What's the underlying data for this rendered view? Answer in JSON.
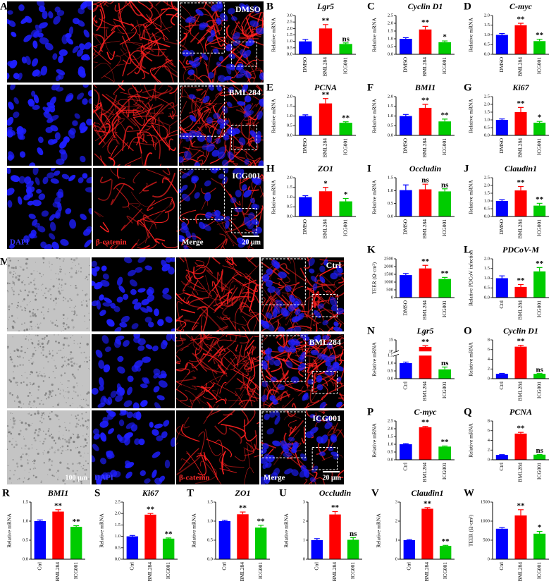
{
  "figure": {
    "A": {
      "label": "A",
      "conditions": [
        "DMSO",
        "BML284",
        "ICG001"
      ],
      "channels": [
        "DAPI",
        "β-catenin",
        "Merge"
      ],
      "scale_bar": "20 μm"
    },
    "M": {
      "label": "M",
      "conditions": [
        "Ctrl",
        "BML284",
        "ICG001"
      ],
      "channels": [
        "DAPI",
        "β-catenin",
        "Merge"
      ],
      "brightfield_scale_bar": "100 μm",
      "scale_bar": "20 μm"
    }
  },
  "chart_data": [
    {
      "type": "bar",
      "panel": "B",
      "title": "Lgr5",
      "ylabel": "Relative mRNA",
      "categories": [
        "DMSO",
        "BML284",
        "ICG001"
      ],
      "values": [
        1.0,
        2.0,
        0.8
      ],
      "errors": [
        0.15,
        0.3,
        0.08
      ],
      "annotations": [
        null,
        "**",
        "ns"
      ],
      "colors": [
        "#0000ff",
        "#ff0000",
        "#00cc00"
      ],
      "ylim": [
        0,
        3
      ],
      "yticks": [
        {
          "value": 0,
          "label": "0.0"
        },
        0.5,
        {
          "value": 1,
          "label": "1.0"
        },
        1.5,
        {
          "value": 2,
          "label": "2.0"
        },
        2.5,
        {
          "value": 3,
          "label": "3.0"
        }
      ]
    },
    {
      "type": "bar",
      "panel": "C",
      "title": "Cyclin D1",
      "ylabel": "Relative mRNA",
      "categories": [
        "DMSO",
        "BML284",
        "ICG001"
      ],
      "values": [
        1.0,
        1.6,
        0.78
      ],
      "errors": [
        0.07,
        0.2,
        0.08
      ],
      "annotations": [
        null,
        "**",
        "*"
      ],
      "colors": [
        "#0000ff",
        "#ff0000",
        "#00cc00"
      ],
      "ylim": [
        0,
        2.5
      ],
      "yticks": [
        {
          "value": 0,
          "label": "0.0"
        },
        0.5,
        {
          "value": 1,
          "label": "1.0"
        },
        1.5,
        {
          "value": 2,
          "label": "2.0"
        },
        2.5
      ]
    },
    {
      "type": "bar",
      "panel": "D",
      "title": "C-myc",
      "ylabel": "Relative mRNA",
      "categories": [
        "DMSO",
        "BML284",
        "ICG001"
      ],
      "values": [
        1.0,
        1.5,
        0.68
      ],
      "errors": [
        0.07,
        0.1,
        0.1
      ],
      "annotations": [
        null,
        "**",
        "**"
      ],
      "colors": [
        "#0000ff",
        "#ff0000",
        "#00cc00"
      ],
      "ylim": [
        0,
        2
      ],
      "yticks": [
        {
          "value": 0,
          "label": "0.0"
        },
        0.5,
        {
          "value": 1,
          "label": "1.0"
        },
        1.5,
        {
          "value": 2,
          "label": "2.0"
        }
      ]
    },
    {
      "type": "bar",
      "panel": "E",
      "title": "PCNA",
      "ylabel": "Relative mRNA",
      "categories": [
        "DMSO",
        "BML284",
        "ICG001"
      ],
      "values": [
        1.0,
        1.65,
        0.65
      ],
      "errors": [
        0.06,
        0.25,
        0.05
      ],
      "annotations": [
        null,
        "**",
        "**"
      ],
      "colors": [
        "#0000ff",
        "#ff0000",
        "#00cc00"
      ],
      "ylim": [
        0,
        2
      ],
      "yticks": [
        {
          "value": 0,
          "label": "0.0"
        },
        0.5,
        {
          "value": 1,
          "label": "1.0"
        },
        1.5,
        {
          "value": 2,
          "label": "2.0"
        }
      ]
    },
    {
      "type": "bar",
      "panel": "F",
      "title": "BMI1",
      "ylabel": "Relative mRNA",
      "categories": [
        "DMSO",
        "BML284",
        "ICG001"
      ],
      "values": [
        1.0,
        1.42,
        0.72
      ],
      "errors": [
        0.08,
        0.18,
        0.12
      ],
      "annotations": [
        null,
        "**",
        "**"
      ],
      "colors": [
        "#0000ff",
        "#ff0000",
        "#00cc00"
      ],
      "ylim": [
        0,
        2
      ],
      "yticks": [
        {
          "value": 0,
          "label": "0.0"
        },
        0.5,
        {
          "value": 1,
          "label": "1.0"
        },
        1.5,
        {
          "value": 2,
          "label": "2.0"
        }
      ]
    },
    {
      "type": "bar",
      "panel": "G",
      "title": "Ki67",
      "ylabel": "Relative mRNA",
      "categories": [
        "DMSO",
        "BML284",
        "ICG001"
      ],
      "values": [
        1.0,
        1.5,
        0.82
      ],
      "errors": [
        0.06,
        0.3,
        0.08
      ],
      "annotations": [
        null,
        "**",
        "*"
      ],
      "colors": [
        "#0000ff",
        "#ff0000",
        "#00cc00"
      ],
      "ylim": [
        0,
        2.5
      ],
      "yticks": [
        {
          "value": 0,
          "label": "0.0"
        },
        0.5,
        {
          "value": 1,
          "label": "1.0"
        },
        1.5,
        {
          "value": 2,
          "label": "2.0"
        },
        2.5
      ]
    },
    {
      "type": "bar",
      "panel": "H",
      "title": "ZO1",
      "ylabel": "Relative mRNA",
      "categories": [
        "DMSO",
        "BML284",
        "ICG001"
      ],
      "values": [
        1.0,
        1.3,
        0.78
      ],
      "errors": [
        0.07,
        0.2,
        0.15
      ],
      "annotations": [
        null,
        "*",
        "*"
      ],
      "colors": [
        "#0000ff",
        "#ff0000",
        "#00cc00"
      ],
      "ylim": [
        0,
        2
      ],
      "yticks": [
        {
          "value": 0,
          "label": "0.0"
        },
        0.5,
        {
          "value": 1,
          "label": "1.0"
        },
        1.5,
        {
          "value": 2,
          "label": "2.0"
        }
      ]
    },
    {
      "type": "bar",
      "panel": "I",
      "title": "Occludin",
      "ylabel": "Relative mRNA",
      "categories": [
        "DMSO",
        "BML284",
        "ICG001"
      ],
      "values": [
        1.02,
        1.05,
        0.97
      ],
      "errors": [
        0.2,
        0.2,
        0.1
      ],
      "annotations": [
        null,
        "ns",
        "ns"
      ],
      "colors": [
        "#0000ff",
        "#ff0000",
        "#00cc00"
      ],
      "ylim": [
        0,
        1.5
      ],
      "yticks": [
        {
          "value": 0,
          "label": "0.0"
        },
        0.5,
        {
          "value": 1,
          "label": "1.0"
        },
        1.5
      ]
    },
    {
      "type": "bar",
      "panel": "J",
      "title": "Claudin1",
      "ylabel": "Relative mRNA",
      "categories": [
        "DMSO",
        "BML284",
        "ICG001"
      ],
      "values": [
        1.0,
        1.68,
        0.7
      ],
      "errors": [
        0.08,
        0.25,
        0.15
      ],
      "annotations": [
        null,
        "**",
        "**"
      ],
      "colors": [
        "#0000ff",
        "#ff0000",
        "#00cc00"
      ],
      "ylim": [
        0,
        2.5
      ],
      "yticks": [
        {
          "value": 0,
          "label": "0.0"
        },
        0.5,
        {
          "value": 1,
          "label": "1.0"
        },
        1.5,
        {
          "value": 2,
          "label": "2.0"
        },
        2.5
      ]
    },
    {
      "type": "bar",
      "panel": "K",
      "ylabel": "TEER (Ω·cm²)",
      "categories": [
        "DMSO",
        "BML284",
        "ICG001"
      ],
      "values": [
        1450,
        1880,
        1200
      ],
      "errors": [
        100,
        200,
        100
      ],
      "annotations": [
        null,
        "**",
        "**"
      ],
      "colors": [
        "#0000ff",
        "#ff0000",
        "#00cc00"
      ],
      "ylim": [
        0,
        2500
      ],
      "yticks": [
        0,
        500,
        1000,
        1500,
        2000,
        2500
      ]
    },
    {
      "type": "bar",
      "panel": "L",
      "title": "PDCoV-M",
      "ylabel": "Relative PDCoV infection",
      "categories": [
        "Ctrl",
        "BML284",
        "ICG001"
      ],
      "values": [
        1.0,
        0.55,
        1.35
      ],
      "errors": [
        0.12,
        0.12,
        0.2
      ],
      "annotations": [
        null,
        "**",
        "**"
      ],
      "colors": [
        "#0000ff",
        "#ff0000",
        "#00cc00"
      ],
      "ylim": [
        0,
        2
      ],
      "yticks": [
        {
          "value": 0,
          "label": "0.0"
        },
        0.5,
        {
          "value": 1,
          "label": "1.0"
        },
        1.5,
        {
          "value": 2,
          "label": "2.0"
        }
      ]
    },
    {
      "type": "bar",
      "panel": "N",
      "title": "Lgr5",
      "ylabel": "Relative mRNA",
      "categories": [
        "Ctrl",
        "BML284",
        "ICG001"
      ],
      "values": [
        1.0,
        12,
        0.6
      ],
      "errors": [
        0.07,
        0.5,
        0.15
      ],
      "annotations": [
        null,
        "**",
        "ns"
      ],
      "colors": [
        "#0000ff",
        "#ff0000",
        "#00cc00"
      ],
      "ylim": [
        0,
        15
      ],
      "y_break": [
        1.5,
        10
      ],
      "yticks": [
        {
          "value": 0,
          "label": "0.0"
        },
        0.5,
        {
          "value": 1,
          "label": "1.0"
        },
        1.5,
        10,
        15
      ]
    },
    {
      "type": "bar",
      "panel": "O",
      "title": "Cyclin D1",
      "ylabel": "Relative mRNA",
      "categories": [
        "Ctrl",
        "BML284",
        "ICG001"
      ],
      "values": [
        1.0,
        6.6,
        1.0
      ],
      "errors": [
        0.1,
        0.3,
        0.05
      ],
      "annotations": [
        null,
        "**",
        "ns"
      ],
      "colors": [
        "#0000ff",
        "#ff0000",
        "#00cc00"
      ],
      "ylim": [
        0,
        8
      ],
      "yticks": [
        0,
        2,
        4,
        6,
        8
      ]
    },
    {
      "type": "bar",
      "panel": "P",
      "title": "C-myc",
      "ylabel": "Relative mRNA",
      "categories": [
        "Ctrl",
        "BML284",
        "ICG001"
      ],
      "values": [
        1.0,
        2.1,
        0.85
      ],
      "errors": [
        0.04,
        0.05,
        0.04
      ],
      "annotations": [
        null,
        "**",
        "**"
      ],
      "colors": [
        "#0000ff",
        "#ff0000",
        "#00cc00"
      ],
      "ylim": [
        0,
        2.5
      ],
      "yticks": [
        {
          "value": 0,
          "label": "0.0"
        },
        0.5,
        {
          "value": 1,
          "label": "1.0"
        },
        1.5,
        {
          "value": 2,
          "label": "2.0"
        },
        2.5
      ]
    },
    {
      "type": "bar",
      "panel": "Q",
      "title": "PCNA",
      "ylabel": "Relative mRNA",
      "categories": [
        "Ctrl",
        "BML284",
        "ICG001"
      ],
      "values": [
        1.0,
        5.4,
        1.05
      ],
      "errors": [
        0.05,
        0.25,
        0.05
      ],
      "annotations": [
        null,
        "**",
        "ns"
      ],
      "colors": [
        "#0000ff",
        "#ff0000",
        "#00cc00"
      ],
      "ylim": [
        0,
        8
      ],
      "yticks": [
        0,
        2,
        4,
        6,
        8
      ]
    },
    {
      "type": "bar",
      "panel": "R",
      "title": "BMI1",
      "ylabel": "Relative mRNA",
      "categories": [
        "Ctrl",
        "BML284",
        "ICG001"
      ],
      "values": [
        1.0,
        1.25,
        0.85
      ],
      "errors": [
        0.03,
        0.05,
        0.03
      ],
      "annotations": [
        null,
        "**",
        "**"
      ],
      "colors": [
        "#0000ff",
        "#ff0000",
        "#00cc00"
      ],
      "ylim": [
        0,
        1.5
      ],
      "yticks": [
        {
          "value": 0,
          "label": "0.0"
        },
        0.5,
        {
          "value": 1,
          "label": "1.0"
        },
        1.5
      ]
    },
    {
      "type": "bar",
      "panel": "S",
      "title": "Ki67",
      "ylabel": "Relative mRNA",
      "categories": [
        "Ctrl",
        "BML284",
        "ICG001"
      ],
      "values": [
        1.0,
        1.95,
        0.9
      ],
      "errors": [
        0.04,
        0.05,
        0.03
      ],
      "annotations": [
        null,
        "**",
        "**"
      ],
      "colors": [
        "#0000ff",
        "#ff0000",
        "#00cc00"
      ],
      "ylim": [
        0,
        2.5
      ],
      "yticks": [
        {
          "value": 0,
          "label": "0.0"
        },
        0.5,
        {
          "value": 1,
          "label": "1.0"
        },
        1.5,
        {
          "value": 2,
          "label": "2.0"
        },
        2.5
      ]
    },
    {
      "type": "bar",
      "panel": "T",
      "title": "ZO1",
      "ylabel": "Relative mRNA",
      "categories": [
        "Ctrl",
        "BML284",
        "ICG001"
      ],
      "values": [
        1.0,
        1.18,
        0.83
      ],
      "errors": [
        0.02,
        0.06,
        0.06
      ],
      "annotations": [
        null,
        "**",
        "**"
      ],
      "colors": [
        "#0000ff",
        "#ff0000",
        "#00cc00"
      ],
      "ylim": [
        0,
        1.5
      ],
      "yticks": [
        {
          "value": 0,
          "label": "0.0"
        },
        0.5,
        {
          "value": 1,
          "label": "1.0"
        },
        1.5
      ]
    },
    {
      "type": "bar",
      "panel": "U",
      "title": "Occludin",
      "ylabel": "Relative mRNA",
      "categories": [
        "Ctrl",
        "BML284",
        "ICG001"
      ],
      "values": [
        1.0,
        2.35,
        1.02
      ],
      "errors": [
        0.08,
        0.15,
        0.12
      ],
      "annotations": [
        null,
        "**",
        "ns"
      ],
      "colors": [
        "#0000ff",
        "#ff0000",
        "#00cc00"
      ],
      "ylim": [
        0,
        3
      ],
      "yticks": [
        0,
        1,
        2,
        3
      ]
    },
    {
      "type": "bar",
      "panel": "V",
      "title": "Claudin1",
      "ylabel": "Relative mRNA",
      "categories": [
        "Ctrl",
        "BML284",
        "ICG001"
      ],
      "values": [
        1.0,
        2.65,
        0.7
      ],
      "errors": [
        0.03,
        0.06,
        0.03
      ],
      "annotations": [
        null,
        "**",
        "**"
      ],
      "colors": [
        "#0000ff",
        "#ff0000",
        "#00cc00"
      ],
      "ylim": [
        0,
        3
      ],
      "yticks": [
        0,
        1,
        2,
        3
      ]
    },
    {
      "type": "bar",
      "panel": "W",
      "ylabel": "TEER (Ω·cm²)",
      "categories": [
        "Ctrl",
        "BML284",
        "ICG001"
      ],
      "values": [
        800,
        1150,
        670
      ],
      "errors": [
        30,
        150,
        60
      ],
      "annotations": [
        null,
        "**",
        "*"
      ],
      "colors": [
        "#0000ff",
        "#ff0000",
        "#00cc00"
      ],
      "ylim": [
        0,
        1500
      ],
      "yticks": [
        0,
        500,
        1000,
        1500
      ]
    }
  ]
}
